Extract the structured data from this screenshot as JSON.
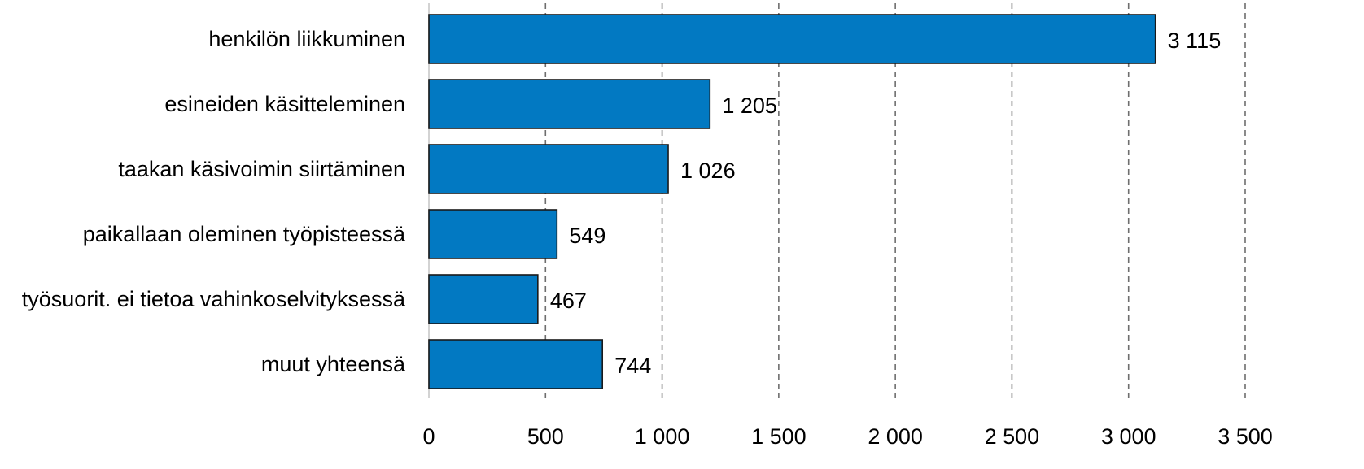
{
  "chart_data": {
    "type": "bar",
    "orientation": "horizontal",
    "categories": [
      "henkilön liikkuminen",
      "esineiden käsitteleminen",
      "taakan käsivoimin siirtäminen",
      "paikallaan oleminen työpisteessä",
      "työsuorit. ei tietoa vahinkoselvityksessä",
      "muut yhteensä"
    ],
    "values": [
      3115,
      1205,
      1026,
      549,
      467,
      744
    ],
    "value_labels": [
      "3 115",
      "1 205",
      "1 026",
      "549",
      "467",
      "744"
    ],
    "xlim": [
      0,
      3500
    ],
    "xticks": [
      0,
      500,
      1000,
      1500,
      2000,
      2500,
      3000,
      3500
    ],
    "xtick_labels": [
      "0",
      "500",
      "1 000",
      "1 500",
      "2 000",
      "2 500",
      "3 000",
      "3 500"
    ],
    "grid": true,
    "bar_color": "#0279c2",
    "legend": "none"
  }
}
